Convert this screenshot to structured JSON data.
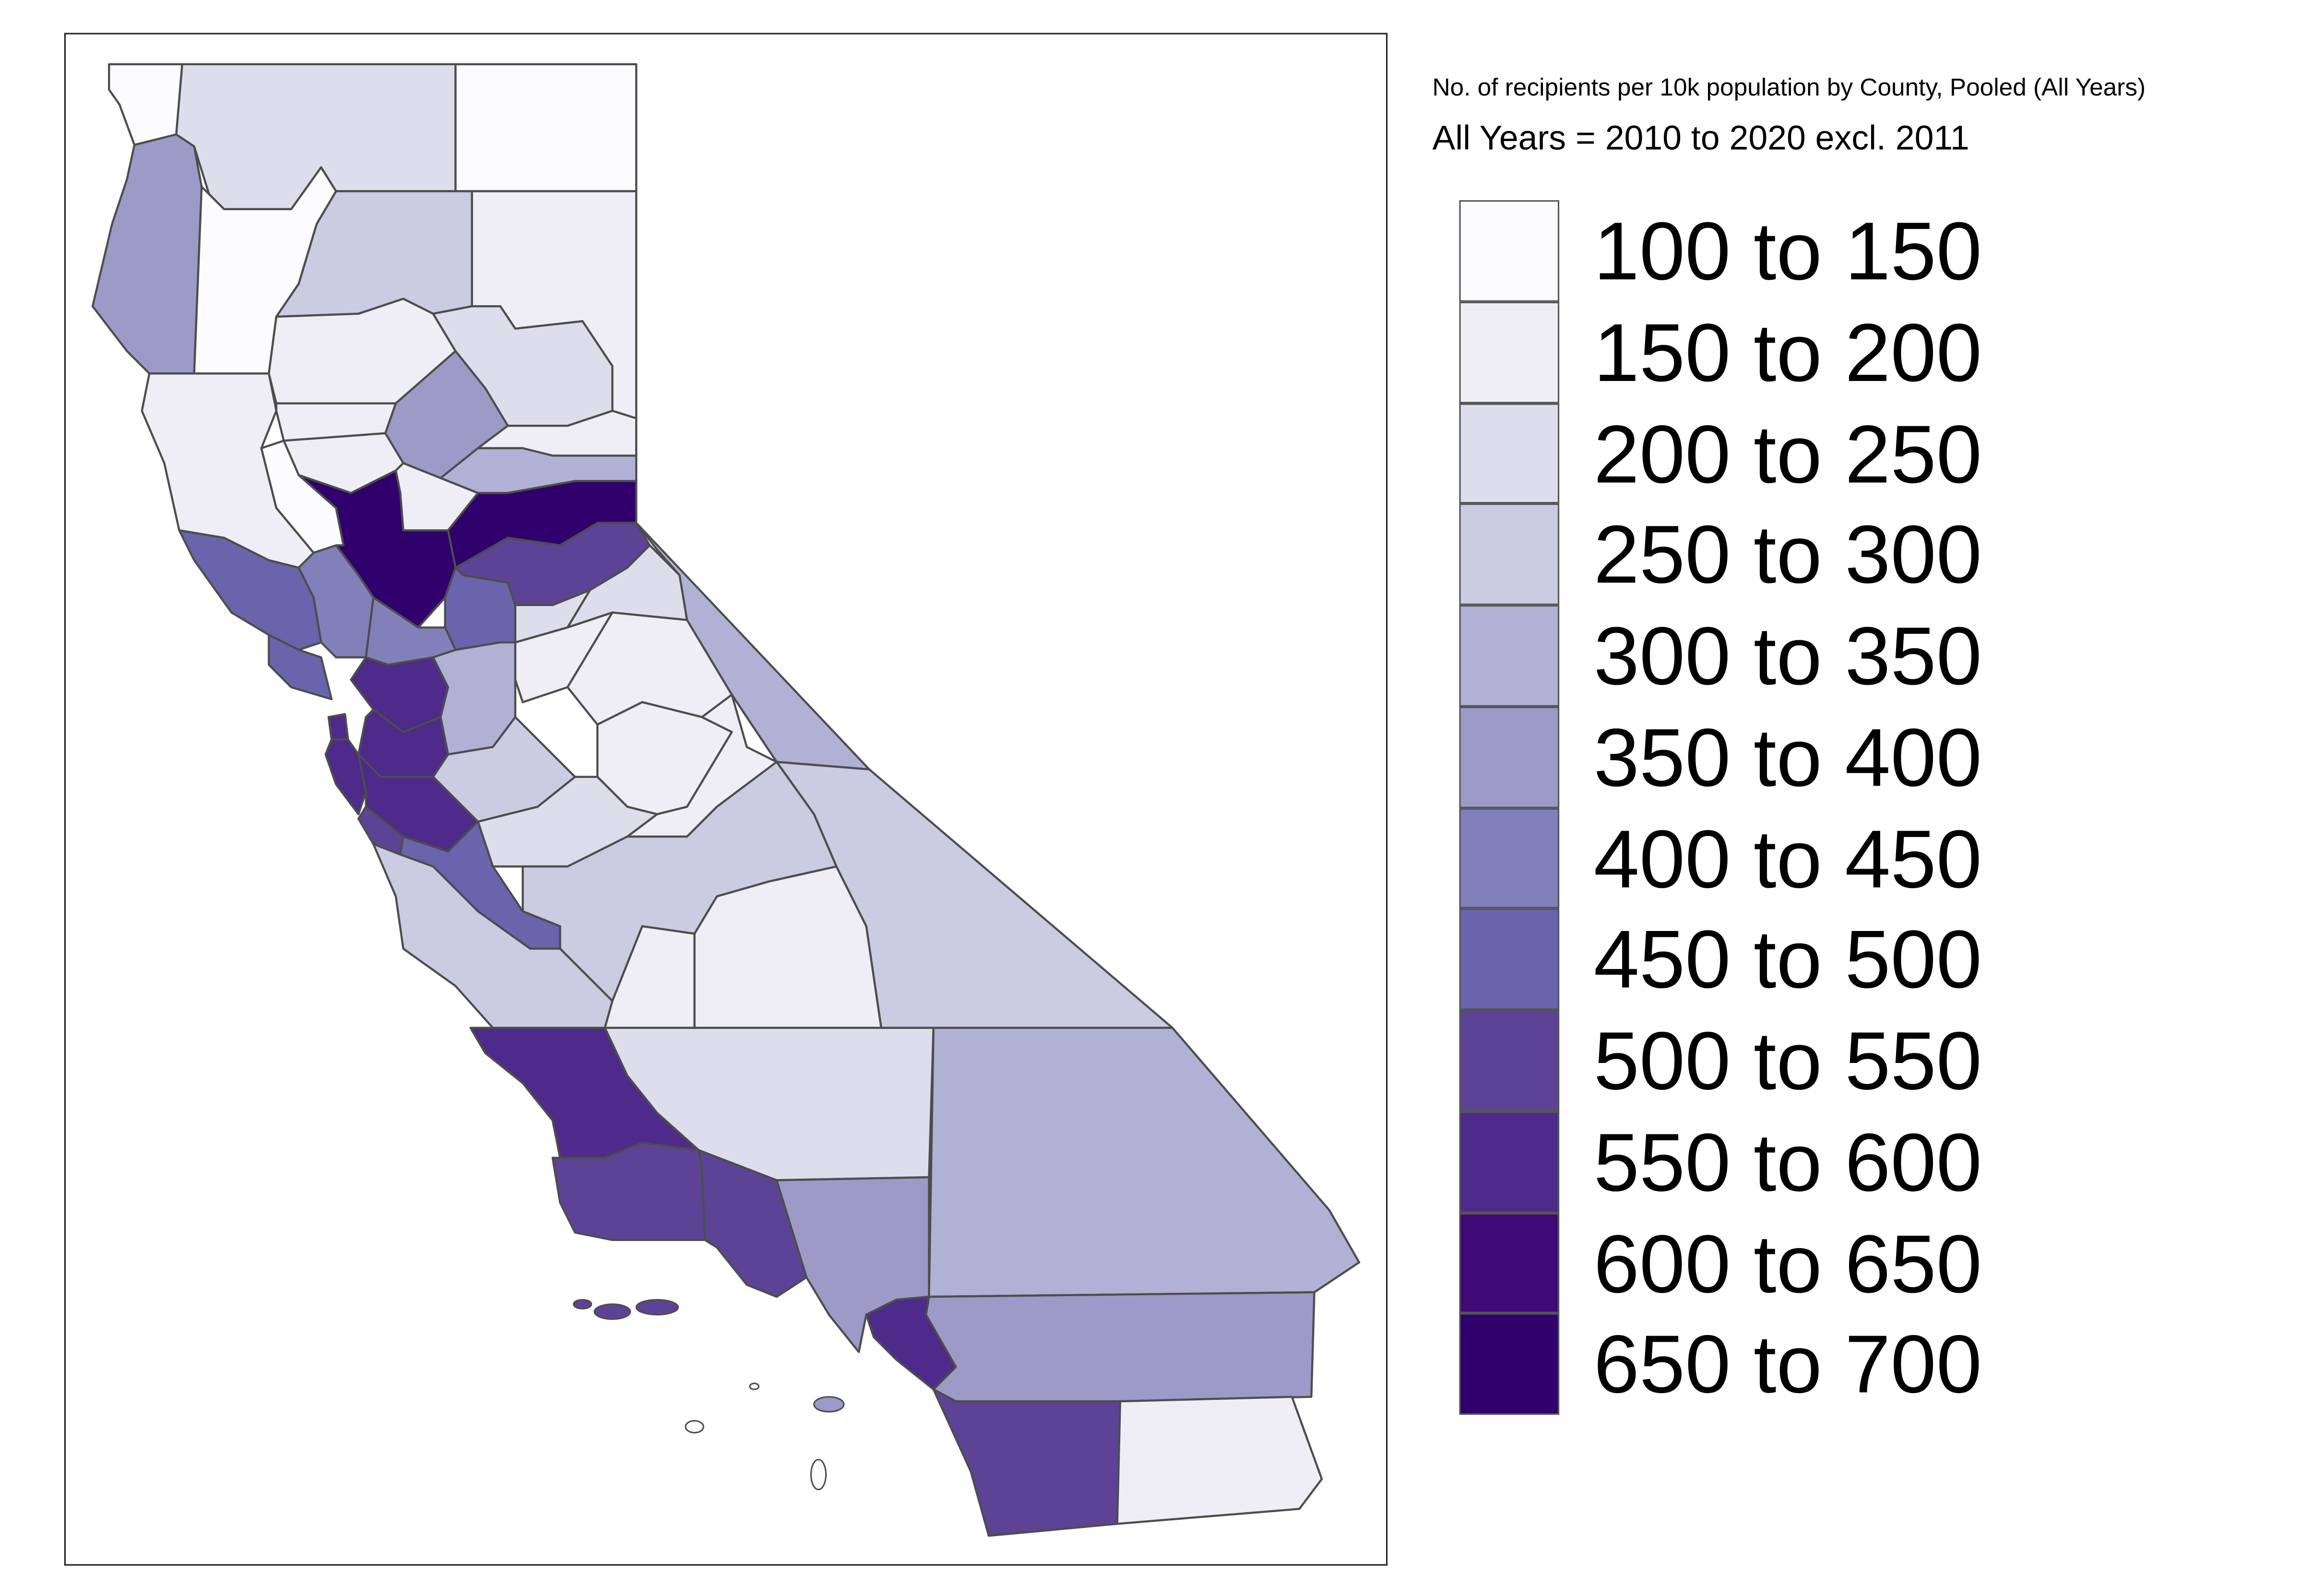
{
  "legend": {
    "title": "No. of recipients per 10k population by County, Pooled (All Years)",
    "subtitle": "All Years = 2010 to 2020 excl. 2011",
    "bins": [
      {
        "label": "100 to 150",
        "color": "#FCFBFD"
      },
      {
        "label": "150 to 200",
        "color": "#EFEDF5"
      },
      {
        "label": "200 to 250",
        "color": "#DEDDEC"
      },
      {
        "label": "250 to 300",
        "color": "#CBCBE2"
      },
      {
        "label": "300 to 350",
        "color": "#B1B1D6"
      },
      {
        "label": "350 to 400",
        "color": "#9D9AC8"
      },
      {
        "label": "400 to 450",
        "color": "#8280BA"
      },
      {
        "label": "450 to 500",
        "color": "#6A64AC"
      },
      {
        "label": "500 to 550",
        "color": "#5D4396"
      },
      {
        "label": "550 to 600",
        "color": "#4E2A8A"
      },
      {
        "label": "600 to 650",
        "color": "#3F0A77"
      },
      {
        "label": "650 to 700",
        "color": "#30006C"
      }
    ]
  },
  "map": {
    "border_color": "#4D4D4D",
    "regions": [
      {
        "id": "del-norte",
        "bin": 0
      },
      {
        "id": "siskiyou",
        "bin": 2
      },
      {
        "id": "modoc",
        "bin": 0
      },
      {
        "id": "humboldt",
        "bin": 5
      },
      {
        "id": "trinity",
        "bin": 0
      },
      {
        "id": "shasta",
        "bin": 3
      },
      {
        "id": "lassen",
        "bin": 1
      },
      {
        "id": "mendocino",
        "bin": 1
      },
      {
        "id": "tehama",
        "bin": 1
      },
      {
        "id": "plumas",
        "bin": 2
      },
      {
        "id": "glenn",
        "bin": 1
      },
      {
        "id": "butte",
        "bin": 5
      },
      {
        "id": "sierra",
        "bin": 1
      },
      {
        "id": "nevada",
        "bin": 4
      },
      {
        "id": "placer",
        "bin": 11
      },
      {
        "id": "colusa",
        "bin": 1
      },
      {
        "id": "lake",
        "bin": 0
      },
      {
        "id": "sutter-yuba",
        "bin": 1
      },
      {
        "id": "yolo",
        "bin": 11
      },
      {
        "id": "el-dorado",
        "bin": 8
      },
      {
        "id": "sacramento",
        "bin": 7
      },
      {
        "id": "sonoma",
        "bin": 7
      },
      {
        "id": "napa",
        "bin": 6
      },
      {
        "id": "marin",
        "bin": 7
      },
      {
        "id": "solano",
        "bin": 6
      },
      {
        "id": "contra-costa",
        "bin": 9
      },
      {
        "id": "san-joaquin",
        "bin": 4
      },
      {
        "id": "amador",
        "bin": 2
      },
      {
        "id": "alpine",
        "bin": 2
      },
      {
        "id": "calaveras",
        "bin": 1
      },
      {
        "id": "tuolumne",
        "bin": 1
      },
      {
        "id": "mono",
        "bin": 4
      },
      {
        "id": "inyo",
        "bin": 3
      },
      {
        "id": "san-francisco",
        "bin": 9
      },
      {
        "id": "alameda",
        "bin": 9
      },
      {
        "id": "san-mateo",
        "bin": 9
      },
      {
        "id": "santa-clara",
        "bin": 9
      },
      {
        "id": "stanislaus",
        "bin": 3
      },
      {
        "id": "mariposa",
        "bin": 1
      },
      {
        "id": "merced",
        "bin": 2
      },
      {
        "id": "madera",
        "bin": 1
      },
      {
        "id": "fresno",
        "bin": 3
      },
      {
        "id": "santa-cruz",
        "bin": 8
      },
      {
        "id": "san-benito",
        "bin": 7
      },
      {
        "id": "monterey",
        "bin": 3
      },
      {
        "id": "kings",
        "bin": 1
      },
      {
        "id": "tulare",
        "bin": 1
      },
      {
        "id": "san-luis-obispo",
        "bin": 9
      },
      {
        "id": "kern",
        "bin": 2
      },
      {
        "id": "san-bernardino",
        "bin": 4
      },
      {
        "id": "santa-barbara",
        "bin": 8
      },
      {
        "id": "ventura",
        "bin": 8
      },
      {
        "id": "los-angeles",
        "bin": 5
      },
      {
        "id": "orange",
        "bin": 9
      },
      {
        "id": "riverside",
        "bin": 5
      },
      {
        "id": "san-diego",
        "bin": 8
      },
      {
        "id": "imperial",
        "bin": 1
      }
    ]
  }
}
